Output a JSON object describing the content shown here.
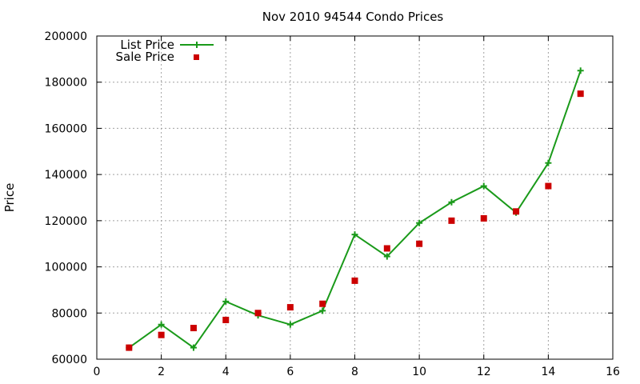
{
  "chart_data": {
    "type": "line",
    "title": "Nov 2010 94544 Condo Prices",
    "xlabel": "",
    "ylabel": "Price",
    "xlim": [
      0,
      16
    ],
    "ylim": [
      60000,
      200000
    ],
    "xticks": [
      0,
      2,
      4,
      6,
      8,
      10,
      12,
      14,
      16
    ],
    "yticks": [
      60000,
      80000,
      100000,
      120000,
      140000,
      160000,
      180000,
      200000
    ],
    "grid": true,
    "legend_position": "top-left",
    "series": [
      {
        "name": "List Price",
        "style": "line-with-plus-markers",
        "color": "#1a9a1a",
        "x": [
          1,
          2,
          3,
          4,
          5,
          6,
          7,
          8,
          9,
          10,
          11,
          12,
          13,
          14,
          15
        ],
        "values": [
          65000,
          75000,
          65000,
          85000,
          79000,
          75000,
          81000,
          114000,
          104500,
          119000,
          128000,
          135000,
          123500,
          145000,
          185000
        ]
      },
      {
        "name": "Sale Price",
        "style": "square-markers",
        "color": "#cc0000",
        "x": [
          1,
          2,
          3,
          4,
          5,
          6,
          7,
          8,
          9,
          10,
          11,
          12,
          13,
          14,
          15
        ],
        "values": [
          65000,
          70500,
          73500,
          77000,
          80000,
          82500,
          84000,
          94000,
          108000,
          110000,
          120000,
          121000,
          124000,
          135000,
          175000
        ]
      }
    ]
  }
}
